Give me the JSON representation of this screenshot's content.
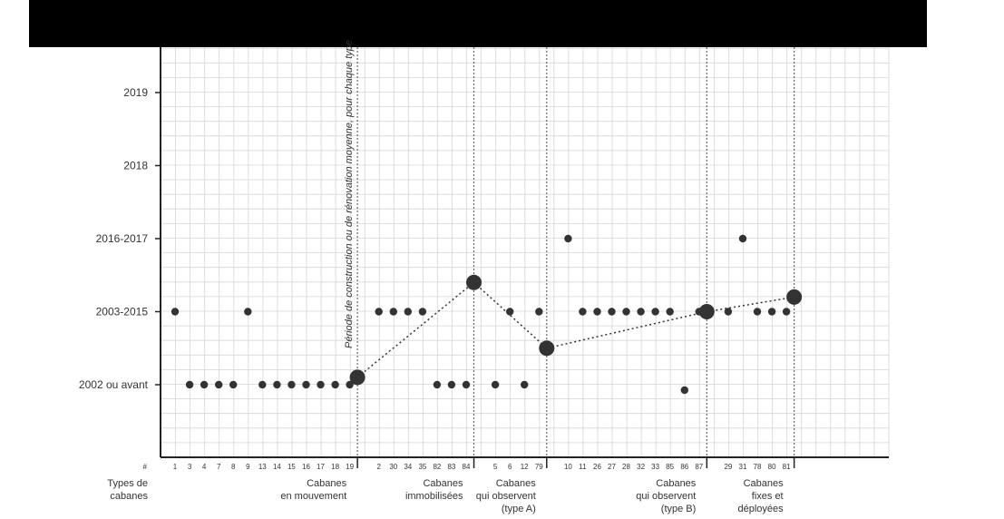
{
  "chart_data": {
    "type": "scatter",
    "y_categories": [
      "2002 ou avant",
      "2003-2015",
      "2016-2017",
      "2018",
      "2019"
    ],
    "x_header_label": "#",
    "x_row_label_lines": [
      "Types de",
      "cabanes"
    ],
    "vertical_annotation": "Période de construction ou de rénovation moyenne, pour chaque type",
    "grid": true,
    "groups": [
      {
        "label_lines": [
          "Cabanes",
          "en mouvement"
        ],
        "items": [
          {
            "id": "1",
            "y": "2003-2015"
          },
          {
            "id": "3",
            "y": "2002 ou avant"
          },
          {
            "id": "4",
            "y": "2002 ou avant"
          },
          {
            "id": "7",
            "y": "2002 ou avant"
          },
          {
            "id": "8",
            "y": "2002 ou avant"
          },
          {
            "id": "9",
            "y": "2003-2015"
          },
          {
            "id": "13",
            "y": "2002 ou avant"
          },
          {
            "id": "14",
            "y": "2002 ou avant"
          },
          {
            "id": "15",
            "y": "2002 ou avant"
          },
          {
            "id": "16",
            "y": "2002 ou avant"
          },
          {
            "id": "17",
            "y": "2002 ou avant"
          },
          {
            "id": "18",
            "y": "2002 ou avant"
          },
          {
            "id": "19",
            "y": "2002 ou avant"
          }
        ]
      },
      {
        "label_lines": [
          "Cabanes",
          "immobilisées"
        ],
        "items": [
          {
            "id": "2",
            "y": "2003-2015"
          },
          {
            "id": "30",
            "y": "2003-2015"
          },
          {
            "id": "34",
            "y": "2003-2015"
          },
          {
            "id": "35",
            "y": "2003-2015"
          },
          {
            "id": "82",
            "y": "2002 ou avant"
          },
          {
            "id": "83",
            "y": "2002 ou avant"
          },
          {
            "id": "84",
            "y": "2002 ou avant"
          }
        ]
      },
      {
        "label_lines": [
          "Cabanes",
          "qui observent",
          "(type A)"
        ],
        "items": [
          {
            "id": "5",
            "y": "2002 ou avant"
          },
          {
            "id": "6",
            "y": "2003-2015"
          },
          {
            "id": "12",
            "y": "2002 ou avant"
          },
          {
            "id": "79",
            "y": "2003-2015"
          }
        ]
      },
      {
        "label_lines": [
          "Cabanes",
          "qui observent",
          "(type B)"
        ],
        "items": [
          {
            "id": "10",
            "y": "2016-2017"
          },
          {
            "id": "11",
            "y": "2003-2015"
          },
          {
            "id": "26",
            "y": "2003-2015"
          },
          {
            "id": "27",
            "y": "2003-2015"
          },
          {
            "id": "28",
            "y": "2003-2015"
          },
          {
            "id": "32",
            "y": "2003-2015"
          },
          {
            "id": "33",
            "y": "2003-2015"
          },
          {
            "id": "85",
            "y": "2003-2015"
          },
          {
            "id": "86",
            "y": "2002 ou avant"
          },
          {
            "id": "87",
            "y": "2003-2015"
          }
        ]
      },
      {
        "label_lines": [
          "Cabanes",
          "fixes et",
          "déployées"
        ],
        "items": [
          {
            "id": "29",
            "y": "2003-2015"
          },
          {
            "id": "31",
            "y": "2016-2017"
          },
          {
            "id": "78",
            "y": "2003-2015"
          },
          {
            "id": "80",
            "y": "2003-2015"
          },
          {
            "id": "81",
            "y": "2003-2015"
          }
        ]
      }
    ],
    "group_means": [
      0.1,
      1.4,
      0.5,
      1.0,
      1.2
    ]
  }
}
